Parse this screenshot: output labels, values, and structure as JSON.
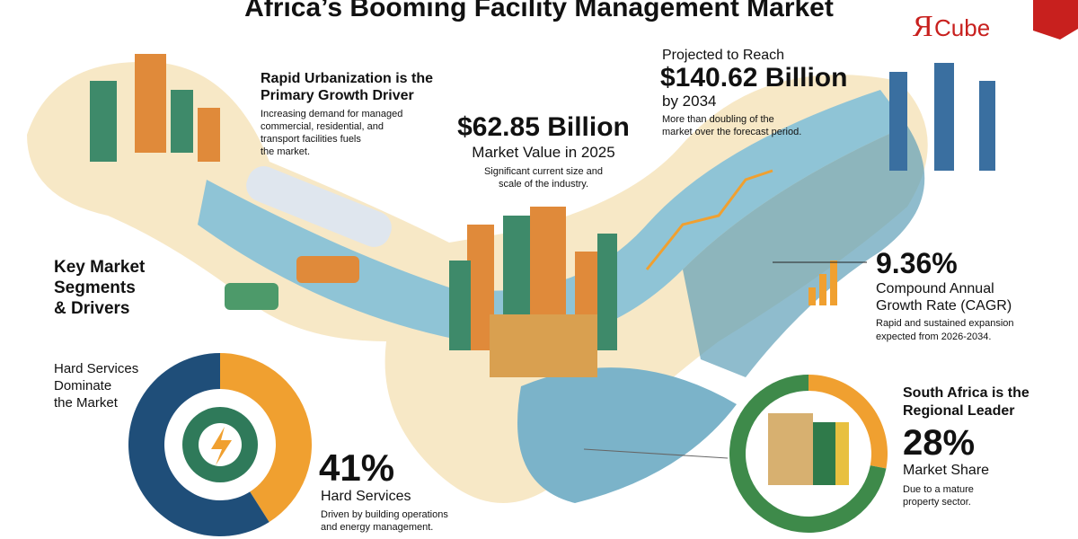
{
  "header": {
    "title": "Africa’s Booming Facility Management Market",
    "logo_mark": "Я",
    "logo_text": "Cube"
  },
  "urbanization": {
    "heading": [
      "Rapid Urbanization is the",
      "Primary Growth Driver"
    ],
    "body": [
      "Increasing demand for managed",
      "commercial, residential, and",
      "transport facilities fuels",
      "the market."
    ]
  },
  "market_value": {
    "amount": "$62.85 Billion",
    "label": "Market Value in 2025",
    "body": [
      "Significant current size and",
      "scale of the industry."
    ]
  },
  "projection": {
    "intro": "Projected to Reach",
    "amount": "$140.62 Billion",
    "year": "by 2034",
    "body": [
      "More than doubling of the",
      "market over the forecast period."
    ]
  },
  "cagr": {
    "amount": "9.36%",
    "label": [
      "Compound Annual",
      "Growth Rate (CAGR)"
    ],
    "body": [
      "Rapid and sustained expansion",
      "expected from 2026-2034."
    ]
  },
  "segments": {
    "heading": [
      "Key Market",
      "Segments",
      "& Drivers"
    ]
  },
  "hard_services": {
    "heading": [
      "Hard Services",
      "Dominate",
      "the Market"
    ],
    "share": {
      "value": 41,
      "label": "41%"
    },
    "label": "Hard Services",
    "body": [
      "Driven by building operations",
      "and energy management."
    ]
  },
  "south_africa": {
    "heading": [
      "South Africa is the",
      "Regional Leader"
    ],
    "share": {
      "value": 28,
      "label": "28%"
    },
    "label": "Market Share",
    "body": [
      "Due to a mature",
      "property sector."
    ]
  }
}
